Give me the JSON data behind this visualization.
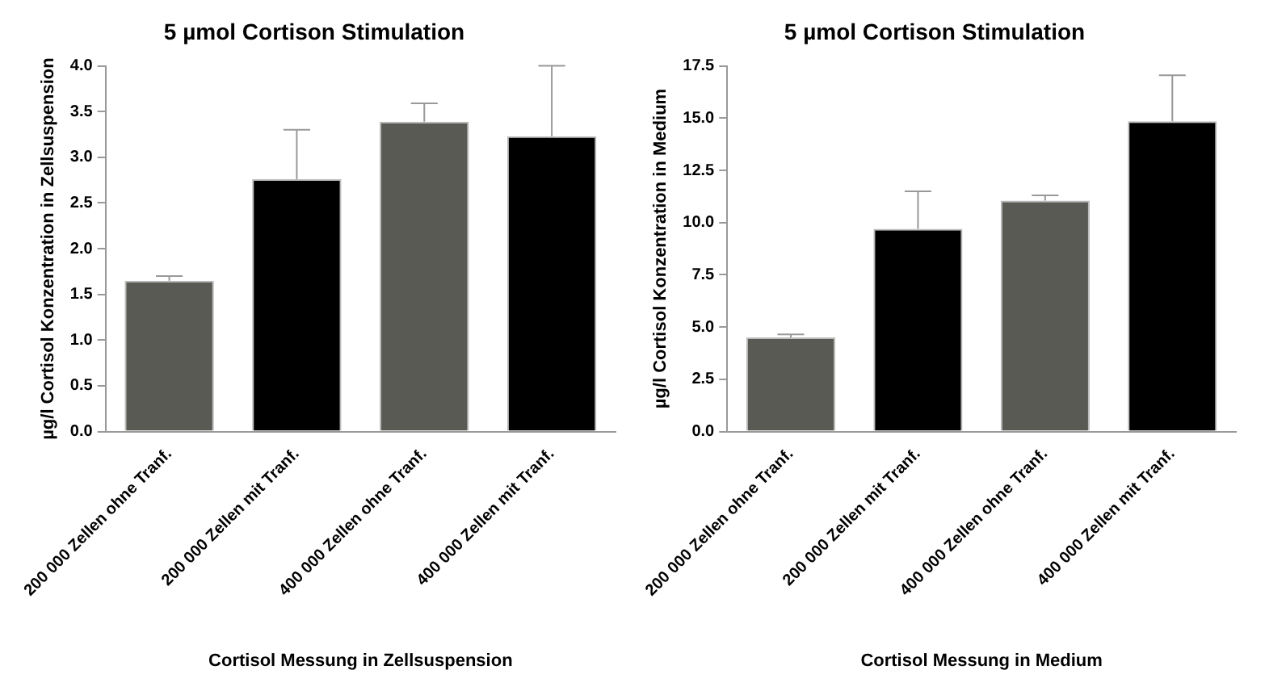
{
  "chart_data": [
    {
      "type": "bar",
      "title": "5 µmol Cortison Stimulation",
      "xlabel": "Cortisol Messung in Zellsuspension",
      "ylabel": "µg/l Cortisol Konzentration in Zellsuspension",
      "categories": [
        "200 000 Zellen ohne Tranf.",
        "200 000 Zellen mit Tranf.",
        "400 000 Zellen ohne Tranf.",
        "400 000 Zellen mit Tranf."
      ],
      "values": [
        1.65,
        2.76,
        3.39,
        3.23
      ],
      "errors": [
        [
          1.65,
          1.7
        ],
        [
          2.76,
          3.3
        ],
        [
          3.39,
          3.59
        ],
        [
          3.23,
          4.0
        ]
      ],
      "colors": [
        "#5a5a55",
        "#000000",
        "#5a5a55",
        "#000000"
      ],
      "ylim": [
        0,
        4.0
      ],
      "yticks": [
        {
          "value": 0,
          "label": "0.0"
        },
        0.5,
        {
          "value": 1,
          "label": "1.0"
        },
        1.5,
        {
          "value": 2,
          "label": "2.0"
        },
        2.5,
        {
          "value": 3,
          "label": "3.0"
        },
        3.5,
        {
          "value": 4,
          "label": "4.0"
        }
      ],
      "grid": false,
      "legend": false
    },
    {
      "type": "bar",
      "title": "5 µmol Cortison Stimulation",
      "xlabel": "Cortisol Messung in Medium",
      "ylabel": "µg/l Cortisol Konzentration in Medium",
      "categories": [
        "200 000 Zellen ohne Tranf.",
        "200 000 Zellen mit Tranf.",
        "400 000 Zellen ohne Tranf.",
        "400 000 Zellen mit Tranf."
      ],
      "values": [
        4.5,
        9.7,
        11.05,
        14.85
      ],
      "errors": [
        [
          4.5,
          4.65
        ],
        [
          9.7,
          11.5
        ],
        [
          11.05,
          11.3
        ],
        [
          14.85,
          17.05
        ]
      ],
      "colors": [
        "#5a5a55",
        "#000000",
        "#5a5a55",
        "#000000"
      ],
      "ylim": [
        0,
        17.5
      ],
      "yticks": [
        {
          "value": 0,
          "label": "0.0"
        },
        2.5,
        {
          "value": 5,
          "label": "5.0"
        },
        7.5,
        {
          "value": 10,
          "label": "10.0"
        },
        12.5,
        {
          "value": 15,
          "label": "15.0"
        },
        17.5
      ],
      "grid": false,
      "legend": false
    }
  ]
}
